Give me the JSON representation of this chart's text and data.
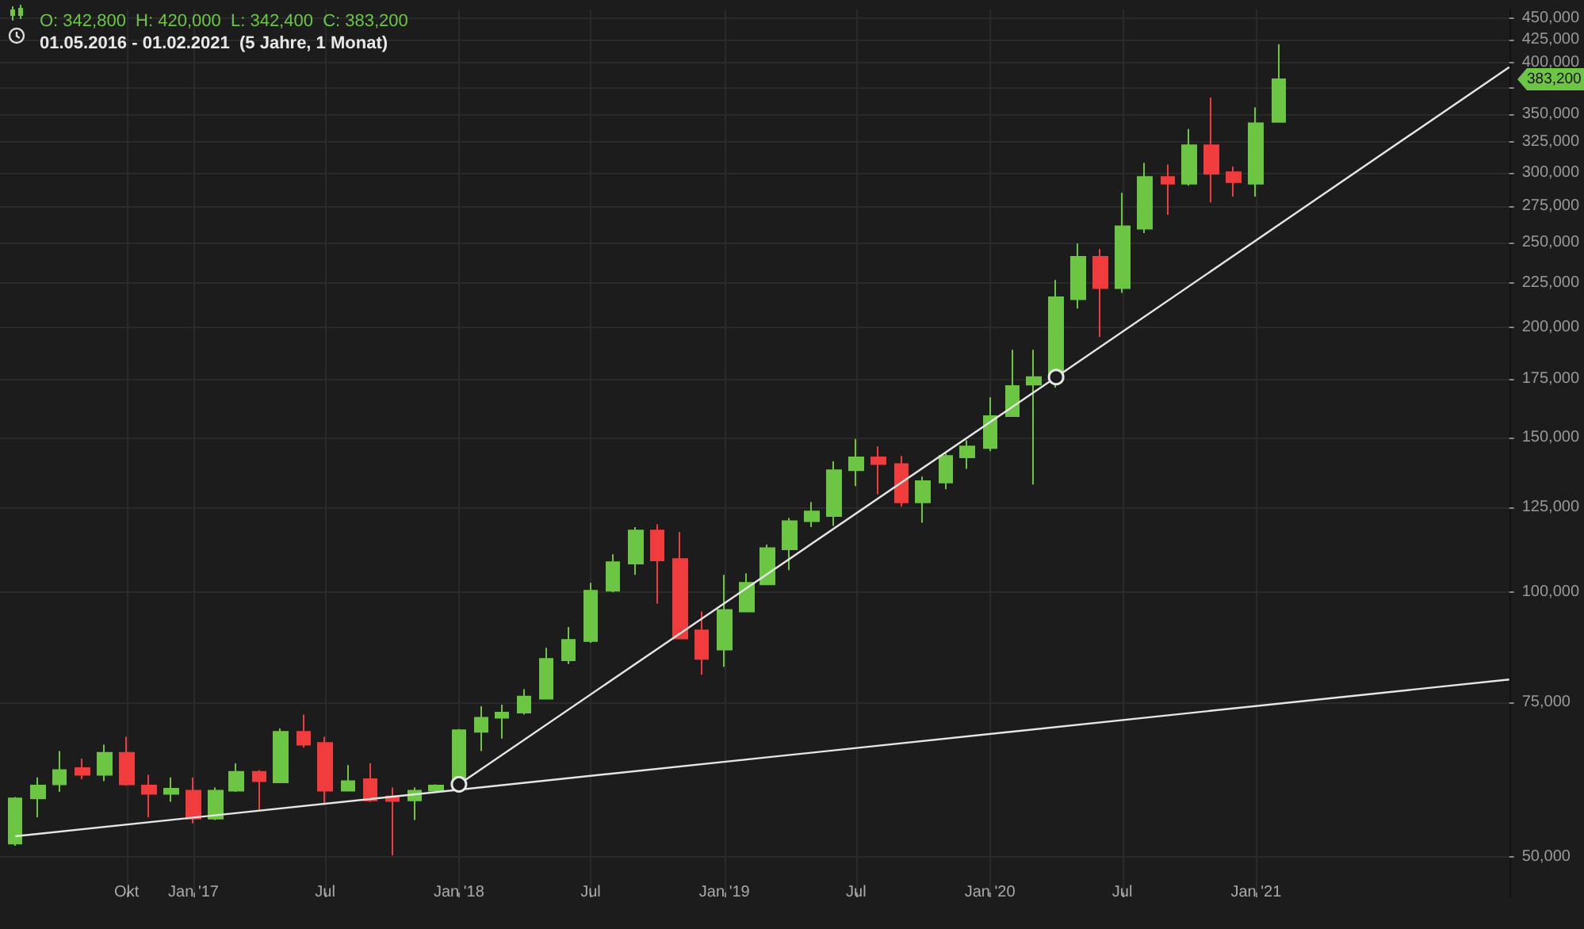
{
  "chart_data": {
    "type": "candlestick",
    "title": "O: 342,800  H: 420,000  L: 342,400  C: 383,200",
    "subtitle": "01.05.2016 - 01.02.2021  (5 Jahre, 1 Monat)",
    "log": "y",
    "grid": true,
    "xlim": [
      "2016-04-10",
      "2021-12-15"
    ],
    "xticks": [
      {
        "value": "2016-10",
        "label": "Okt"
      },
      {
        "value": "2017-01",
        "label": "Jan '17"
      },
      {
        "value": "2017-07",
        "label": "Jul"
      },
      {
        "value": "2018-01",
        "label": "Jan '18"
      },
      {
        "value": "2018-07",
        "label": "Jul"
      },
      {
        "value": "2019-01",
        "label": "Jan '19"
      },
      {
        "value": "2019-07",
        "label": "Jul"
      },
      {
        "value": "2020-01",
        "label": "Jan '20"
      },
      {
        "value": "2020-07",
        "label": "Jul"
      },
      {
        "value": "2021-01",
        "label": "Jan '21"
      }
    ],
    "ylim": [
      45000,
      460000
    ],
    "yticks": [
      {
        "value": 50000,
        "label": "50,000"
      },
      {
        "value": 75000,
        "label": "75,000"
      },
      {
        "value": 100000,
        "label": "100,000"
      },
      {
        "value": 125000,
        "label": "125,000"
      },
      {
        "value": 150000,
        "label": "150,000"
      },
      {
        "value": 175000,
        "label": "175,000"
      },
      {
        "value": 200000,
        "label": "200,000"
      },
      {
        "value": 225000,
        "label": "225,000"
      },
      {
        "value": 250000,
        "label": "250,000"
      },
      {
        "value": 275000,
        "label": "275,000"
      },
      {
        "value": 300000,
        "label": "300,000"
      },
      {
        "value": 325000,
        "label": "325,000"
      },
      {
        "value": 350000,
        "label": "350,000"
      },
      {
        "value": 375000,
        "label": null
      },
      {
        "value": 400000,
        "label": "400,000"
      },
      {
        "value": 425000,
        "label": "425,000"
      },
      {
        "value": 450000,
        "label": "450,000"
      }
    ],
    "annotations": [
      "383,200"
    ],
    "series": [
      {
        "type": "candlestick",
        "x": [
          "2016-05",
          "2016-06",
          "2016-07",
          "2016-08",
          "2016-09",
          "2016-10",
          "2016-11",
          "2016-12",
          "2017-01",
          "2017-02",
          "2017-03",
          "2017-04",
          "2017-05",
          "2017-06",
          "2017-07",
          "2017-08",
          "2017-09",
          "2017-10",
          "2017-11",
          "2017-12",
          "2018-01",
          "2018-02",
          "2018-03",
          "2018-04",
          "2018-05",
          "2018-06",
          "2018-07",
          "2018-08",
          "2018-09",
          "2018-10",
          "2018-11",
          "2018-12",
          "2019-01",
          "2019-02",
          "2019-03",
          "2019-04",
          "2019-05",
          "2019-06",
          "2019-07",
          "2019-08",
          "2019-09",
          "2019-10",
          "2019-11",
          "2019-12",
          "2020-01",
          "2020-02",
          "2020-03",
          "2020-04",
          "2020-05",
          "2020-06",
          "2020-07",
          "2020-08",
          "2020-09",
          "2020-10",
          "2020-11",
          "2020-12",
          "2021-01",
          "2021-02"
        ],
        "ohlc": [
          [
            51800,
            58500,
            51500,
            58300
          ],
          [
            58300,
            61600,
            55500,
            60300
          ],
          [
            60500,
            66000,
            59300,
            62800
          ],
          [
            63100,
            64700,
            61300,
            62000
          ],
          [
            62000,
            67100,
            61000,
            65700
          ],
          [
            65700,
            68500,
            60300,
            60500
          ],
          [
            60300,
            62000,
            55500,
            59000
          ],
          [
            59000,
            61600,
            57800,
            59800
          ],
          [
            59500,
            61600,
            54600,
            55300
          ],
          [
            55300,
            60000,
            55100,
            59500
          ],
          [
            59500,
            63900,
            59300,
            62500
          ],
          [
            62500,
            62800,
            56400,
            61000
          ],
          [
            60800,
            70000,
            60800,
            69400
          ],
          [
            69400,
            72600,
            66600,
            67100
          ],
          [
            67400,
            68500,
            57300,
            59500
          ],
          [
            59500,
            63600,
            59500,
            61000
          ],
          [
            61300,
            63900,
            57800,
            58000
          ],
          [
            58600,
            60000,
            50200,
            57900
          ],
          [
            58000,
            60000,
            55100,
            59500
          ],
          [
            59500,
            60500,
            59300,
            60300
          ],
          [
            60500,
            69900,
            60300,
            69700
          ],
          [
            69400,
            74200,
            66000,
            72000
          ],
          [
            72000,
            74500,
            68200,
            73000
          ],
          [
            73000,
            77600,
            72600,
            76100
          ],
          [
            75700,
            86500,
            75700,
            84000
          ],
          [
            83700,
            91300,
            82900,
            88300
          ],
          [
            88000,
            102500,
            87600,
            100400
          ],
          [
            100400,
            110500,
            100000,
            108200
          ],
          [
            107800,
            118600,
            104700,
            117600
          ],
          [
            117600,
            119500,
            97100,
            108700
          ],
          [
            109100,
            117100,
            88600,
            88600
          ],
          [
            90500,
            95100,
            80600,
            84000
          ],
          [
            86100,
            104700,
            82300,
            95500
          ],
          [
            95100,
            105100,
            95100,
            102500
          ],
          [
            102100,
            113300,
            102100,
            112300
          ],
          [
            111900,
            121500,
            106000,
            120500
          ],
          [
            120500,
            126700,
            118600,
            123600
          ],
          [
            122100,
            140900,
            119000,
            137700
          ],
          [
            137700,
            149400,
            132100,
            142400
          ],
          [
            142400,
            146500,
            129300,
            139900
          ],
          [
            139900,
            142900,
            125100,
            126600
          ],
          [
            126600,
            135400,
            120000,
            133800
          ],
          [
            133300,
            143900,
            131000,
            142900
          ],
          [
            142400,
            148900,
            138200,
            146500
          ],
          [
            145900,
            166600,
            144700,
            158600
          ],
          [
            158600,
            188700,
            158600,
            171600
          ],
          [
            172300,
            188700,
            132600,
            175700
          ],
          [
            175700,
            226500,
            170900,
            216500
          ],
          [
            215400,
            249200,
            210200,
            240700
          ],
          [
            240700,
            245600,
            195200,
            221800
          ],
          [
            221800,
            284700,
            219000,
            260700
          ],
          [
            259100,
            307800,
            256200,
            296700
          ],
          [
            296700,
            306500,
            268700,
            291500
          ],
          [
            291500,
            336500,
            290000,
            322400
          ],
          [
            322400,
            365400,
            277500,
            299200
          ],
          [
            300500,
            305000,
            281800,
            292800
          ],
          [
            291500,
            356000,
            281800,
            341600
          ],
          [
            342800,
            420000,
            342400,
            383200
          ]
        ],
        "colors": [
          "#6cc644",
          "#6cc644",
          "#6cc644",
          "#f03c3c",
          "#6cc644",
          "#f03c3c",
          "#f03c3c",
          "#6cc644",
          "#f03c3c",
          "#6cc644",
          "#6cc644",
          "#f03c3c",
          "#6cc644",
          "#f03c3c",
          "#f03c3c",
          "#6cc644",
          "#f03c3c",
          "#f03c3c",
          "#6cc644",
          "#6cc644",
          "#6cc644",
          "#6cc644",
          "#6cc644",
          "#6cc644",
          "#6cc644",
          "#6cc644",
          "#6cc644",
          "#6cc644",
          "#6cc644",
          "#f03c3c",
          "#f03c3c",
          "#f03c3c",
          "#6cc644",
          "#6cc644",
          "#6cc644",
          "#6cc644",
          "#6cc644",
          "#6cc644",
          "#6cc644",
          "#f03c3c",
          "#f03c3c",
          "#6cc644",
          "#6cc644",
          "#6cc644",
          "#6cc644",
          "#6cc644",
          "#6cc644",
          "#6cc644",
          "#6cc644",
          "#f03c3c",
          "#6cc644",
          "#6cc644",
          "#f03c3c",
          "#6cc644",
          "#f03c3c",
          "#f03c3c",
          "#6cc644",
          "#6cc644"
        ]
      },
      {
        "type": "line",
        "x": [
          "2016-05",
          "2021-12-15"
        ],
        "values": [
          52800,
          79600
        ],
        "color": "#e6e6e6",
        "marker": "none"
      },
      {
        "type": "line",
        "x": [
          "2018-01",
          "2020-04",
          "2021-12-15"
        ],
        "values": [
          60500,
          175700,
          395600
        ],
        "color": "#e6e6e6",
        "marker": "circle"
      }
    ]
  }
}
